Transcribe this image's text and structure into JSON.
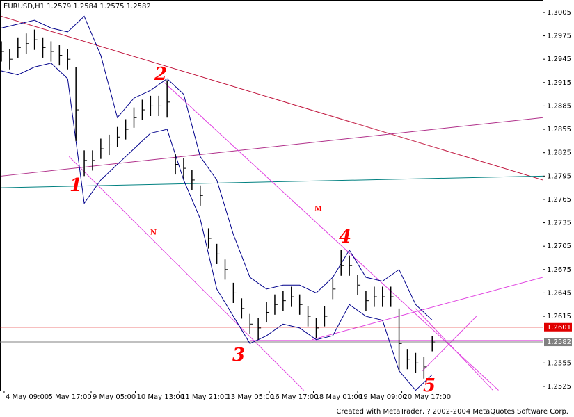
{
  "chart_data": {
    "type": "ohlc",
    "title": "EURUSD,H1  1.2579 1.2584 1.2575 1.2582",
    "xlim": [
      -1,
      392
    ],
    "ylim": [
      1.25196,
      1.3021
    ],
    "yticks": [
      1.3005,
      1.2975,
      1.2945,
      1.2915,
      1.2885,
      1.2855,
      1.2825,
      1.2795,
      1.2765,
      1.2735,
      1.2705,
      1.2675,
      1.2645,
      1.2615,
      1.2555,
      1.2525
    ],
    "xticks": [
      {
        "value": 2,
        "label": "4 May 09:00"
      },
      {
        "value": 33,
        "label": "5 May 17:00"
      },
      {
        "value": 65,
        "label": "9 May 05:00"
      },
      {
        "value": 97,
        "label": "10 May 13:00"
      },
      {
        "value": 129,
        "label": "11 May 21:00"
      },
      {
        "value": 162,
        "label": "13 May 05:00"
      },
      {
        "value": 194,
        "label": "16 May 17:00"
      },
      {
        "value": 226,
        "label": "18 May 01:00"
      },
      {
        "value": 258,
        "label": "19 May 09:00"
      },
      {
        "value": 290,
        "label": "20 May 17:00"
      }
    ],
    "bars": {
      "color": "#000000",
      "x": [
        0,
        6,
        12,
        18,
        24,
        30,
        36,
        42,
        48,
        54,
        60,
        66,
        72,
        78,
        84,
        90,
        96,
        102,
        108,
        114,
        120,
        126,
        132,
        138,
        144,
        150,
        156,
        162,
        168,
        174,
        180,
        186,
        192,
        198,
        204,
        210,
        216,
        222,
        228,
        234,
        240,
        246,
        252,
        258,
        264,
        270,
        276,
        282,
        288,
        294,
        300,
        306,
        312
      ],
      "high": [
        1.2968,
        1.2958,
        1.2973,
        1.2978,
        1.2983,
        1.2973,
        1.2968,
        1.2963,
        1.2958,
        1.2935,
        1.2828,
        1.2828,
        1.2843,
        1.2848,
        1.2858,
        1.2868,
        1.2883,
        1.2893,
        1.2898,
        1.2898,
        1.2918,
        1.2823,
        1.2818,
        1.2803,
        1.2783,
        1.2728,
        1.2708,
        1.2688,
        1.2658,
        1.2638,
        1.2618,
        1.2613,
        1.2633,
        1.2643,
        1.2648,
        1.2653,
        1.2643,
        1.2628,
        1.2613,
        1.2628,
        1.2663,
        1.27,
        1.2693,
        1.2668,
        1.2648,
        1.2653,
        1.2653,
        1.2653,
        1.2625,
        1.2573,
        1.2568,
        1.2563,
        1.259
      ],
      "low": [
        1.2942,
        1.2932,
        1.2947,
        1.2952,
        1.2957,
        1.2947,
        1.2942,
        1.2937,
        1.2932,
        1.284,
        1.2795,
        1.2802,
        1.2817,
        1.2822,
        1.2832,
        1.2842,
        1.2857,
        1.2867,
        1.2872,
        1.2872,
        1.287,
        1.2797,
        1.2792,
        1.2777,
        1.2757,
        1.2702,
        1.2682,
        1.2662,
        1.2632,
        1.2612,
        1.2592,
        1.2585,
        1.2607,
        1.2617,
        1.2622,
        1.2627,
        1.2617,
        1.2602,
        1.2587,
        1.2602,
        1.2637,
        1.2667,
        1.2667,
        1.2642,
        1.2622,
        1.2627,
        1.2627,
        1.2627,
        1.2545,
        1.2547,
        1.2542,
        1.2535,
        1.257
      ],
      "close": [
        1.2955,
        1.2945,
        1.296,
        1.2965,
        1.297,
        1.296,
        1.2955,
        1.295,
        1.2945,
        1.288,
        1.2815,
        1.2815,
        1.283,
        1.2835,
        1.2845,
        1.2855,
        1.287,
        1.288,
        1.2885,
        1.2885,
        1.289,
        1.281,
        1.2805,
        1.279,
        1.277,
        1.2715,
        1.2695,
        1.2675,
        1.2645,
        1.2625,
        1.2605,
        1.26,
        1.262,
        1.263,
        1.2635,
        1.264,
        1.263,
        1.2615,
        1.26,
        1.2615,
        1.265,
        1.268,
        1.268,
        1.2655,
        1.2635,
        1.264,
        1.264,
        1.264,
        1.258,
        1.256,
        1.2555,
        1.255,
        1.2582
      ]
    },
    "bands": {
      "color": "#00008b",
      "x": [
        0,
        12,
        24,
        36,
        48,
        60,
        72,
        84,
        96,
        108,
        120,
        132,
        144,
        156,
        168,
        180,
        192,
        204,
        216,
        228,
        240,
        252,
        264,
        276,
        288,
        300,
        312
      ],
      "upper": [
        1.2985,
        1.299,
        1.2995,
        1.2985,
        1.298,
        1.3,
        1.295,
        1.287,
        1.2895,
        1.2905,
        1.292,
        1.29,
        1.282,
        1.279,
        1.272,
        1.2665,
        1.265,
        1.2655,
        1.2655,
        1.2645,
        1.2665,
        1.27,
        1.2665,
        1.266,
        1.2675,
        1.263,
        1.261
      ],
      "lower": [
        1.293,
        1.2925,
        1.2935,
        1.294,
        1.292,
        1.276,
        1.279,
        1.281,
        1.283,
        1.285,
        1.2855,
        1.279,
        1.274,
        1.265,
        1.2615,
        1.258,
        1.259,
        1.2605,
        1.26,
        1.2585,
        1.259,
        1.263,
        1.2615,
        1.261,
        1.2545,
        1.252,
        1.254
      ]
    },
    "trendlines": [
      {
        "color": "#c0143c",
        "x": [
          0,
          392
        ],
        "y": [
          1.3,
          1.279
        ]
      },
      {
        "color": "#b0308a",
        "x": [
          0,
          392
        ],
        "y": [
          1.2795,
          1.287
        ]
      },
      {
        "color": "#008080",
        "x": [
          0,
          392
        ],
        "y": [
          1.278,
          1.2795
        ]
      },
      {
        "color": "#e040e0",
        "x": [
          118,
          360
        ],
        "y": [
          1.2915,
          1.252
        ]
      },
      {
        "color": "#e040e0",
        "x": [
          49,
          219
        ],
        "y": [
          1.282,
          1.252
        ]
      },
      {
        "color": "#e040e0",
        "x": [
          225,
          392
        ],
        "y": [
          1.2585,
          1.2665
        ]
      },
      {
        "color": "#e040e0",
        "x": [
          180,
          392
        ],
        "y": [
          1.2584,
          1.2584
        ]
      },
      {
        "color": "#e040e0",
        "x": [
          305,
          344
        ],
        "y": [
          1.2545,
          1.2615
        ]
      },
      {
        "color": "#e040e0",
        "x": [
          300,
          356
        ],
        "y": [
          1.2625,
          1.252
        ]
      }
    ],
    "price_labels": [
      {
        "value": 1.2601,
        "color": "#e00000"
      },
      {
        "value": 1.2582,
        "color": "#808080"
      }
    ],
    "annotations": [
      "1",
      "2",
      "3",
      "4",
      "5",
      "M",
      "N"
    ],
    "annotation_color": "#ff0000"
  },
  "footer": "Created with MetaTrader, ? 2002-2004 MetaQuotes Software Corp."
}
